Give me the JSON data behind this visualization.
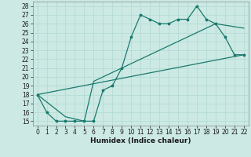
{
  "xlabel": "Humidex (Indice chaleur)",
  "ylabel": "",
  "bg_color": "#cce9e4",
  "grid_color": "#b8ddd7",
  "line_color": "#1a7a6e",
  "xlim": [
    -0.5,
    22.5
  ],
  "ylim": [
    14.5,
    28.5
  ],
  "xticks": [
    0,
    1,
    2,
    3,
    4,
    5,
    6,
    7,
    8,
    9,
    10,
    11,
    12,
    13,
    14,
    15,
    16,
    17,
    18,
    19,
    20,
    21,
    22
  ],
  "yticks": [
    15,
    16,
    17,
    18,
    19,
    20,
    21,
    22,
    23,
    24,
    25,
    26,
    27,
    28
  ],
  "series1_x": [
    0,
    1,
    2,
    3,
    4,
    5,
    6,
    7,
    8,
    9,
    10,
    11,
    12,
    13,
    14,
    15,
    16,
    17,
    18,
    19,
    20,
    21,
    22
  ],
  "series1_y": [
    18,
    16,
    15,
    15,
    15,
    15,
    15,
    18.5,
    19,
    21,
    24.5,
    27,
    26.5,
    26,
    26,
    26.5,
    26.5,
    28,
    26.5,
    26,
    24.5,
    22.5,
    22.5
  ],
  "series2_x": [
    0,
    22
  ],
  "series2_y": [
    18,
    22.5
  ],
  "series3_x": [
    0,
    3,
    5,
    6,
    19,
    22
  ],
  "series3_y": [
    18,
    15.5,
    15,
    19.5,
    26,
    25.5
  ]
}
